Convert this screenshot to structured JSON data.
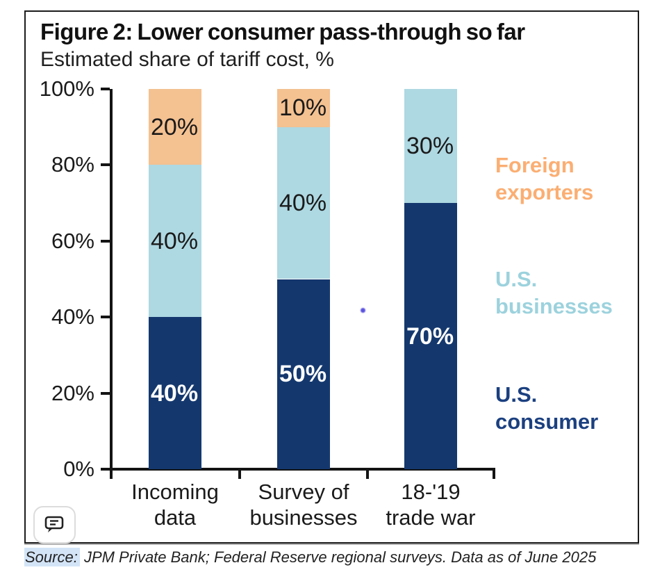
{
  "chart_data": {
    "type": "bar",
    "stacked": true,
    "title": "Figure 2: Lower consumer pass-through so far",
    "subtitle": "Estimated share of tariff cost, %",
    "categories": [
      "Incoming\ndata",
      "Survey of\nbusinesses",
      "18-'19\ntrade war"
    ],
    "series": [
      {
        "name": "U.S. consumer",
        "values": [
          40,
          50,
          70
        ],
        "color": "#14386e",
        "label_color": "#ffffff",
        "label_bold": true
      },
      {
        "name": "U.S. businesses",
        "values": [
          40,
          40,
          30
        ],
        "color": "#aed8e2",
        "label_color": "#1a1a1a",
        "label_bold": false
      },
      {
        "name": "Foreign exporters",
        "values": [
          20,
          10,
          0
        ],
        "color": "#f4c191",
        "label_color": "#1a1a1a",
        "label_bold": false
      }
    ],
    "value_label_suffix": "%",
    "y_ticks": [
      {
        "label": "0%",
        "value": 0
      },
      {
        "label": "20%",
        "value": 20
      },
      {
        "label": "40%",
        "value": 40
      },
      {
        "label": "60%",
        "value": 60
      },
      {
        "label": "80%",
        "value": 80
      },
      {
        "label": "100%",
        "value": 100
      }
    ],
    "ylim": [
      0,
      100
    ],
    "grid": false,
    "legend_position": "right",
    "legend": [
      {
        "label": "Foreign\nexporters",
        "color": "#fbae72"
      },
      {
        "label": "U.S.\nbusinesses",
        "color": "#9cd2dd"
      },
      {
        "label": "U.S.\nconsumer",
        "color": "#1b4080"
      }
    ]
  },
  "source": {
    "label": "Source:",
    "text": " JPM Private Bank; Federal Reserve regional surveys. Data as of June 2025"
  },
  "colors": {
    "axis": "#141414",
    "source_highlight": "#d3e4f7",
    "annotation_dot": "#5a52e0"
  },
  "icons": {
    "comment": "comment-icon"
  }
}
